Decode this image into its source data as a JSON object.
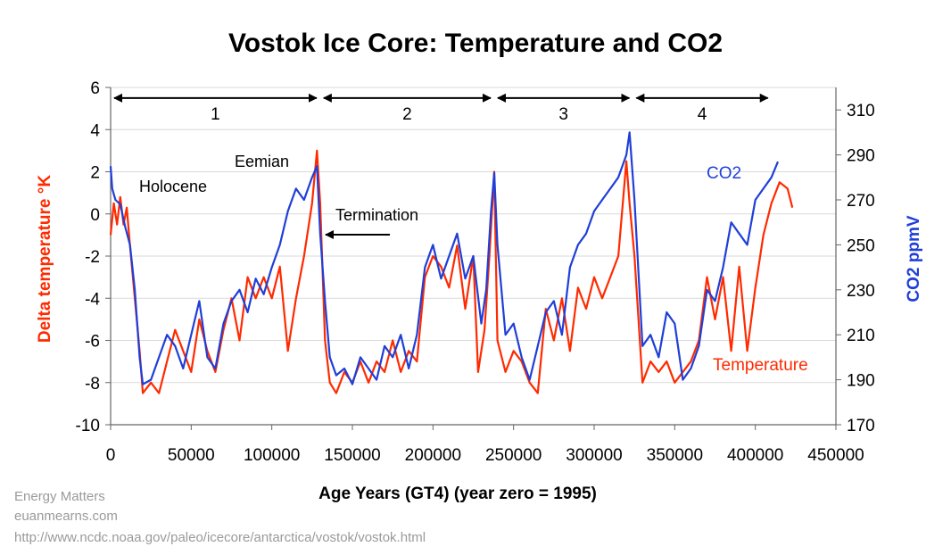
{
  "chart_data": {
    "type": "line",
    "title": "Vostok Ice Core: Temperature and CO2",
    "xlabel": "Age Years (GT4) (year zero = 1995)",
    "ylabel_left": "Delta temperature °K",
    "ylabel_right": "CO2 ppmV",
    "xlim": [
      0,
      450000
    ],
    "ylim_left": [
      -10,
      6
    ],
    "ylim_right": [
      170,
      320
    ],
    "x_ticks": [
      "0",
      "50000",
      "100000",
      "150000",
      "200000",
      "250000",
      "300000",
      "350000",
      "400000",
      "450000"
    ],
    "y_left_ticks": [
      "6",
      "4",
      "2",
      "0",
      "-2",
      "-4",
      "-6",
      "-8",
      "-10"
    ],
    "y_right_ticks": [
      "310",
      "290",
      "270",
      "250",
      "230",
      "210",
      "190",
      "170"
    ],
    "grid": "horizontal",
    "colors": {
      "temperature": "#ff2a00",
      "co2": "#1f3fd8",
      "axis": "#666666",
      "grid": "#d9d9d9",
      "arrow": "#000000"
    },
    "series": [
      {
        "name": "Temperature",
        "axis": "left",
        "x": [
          0,
          2000,
          4000,
          6000,
          8000,
          10000,
          12000,
          15000,
          18000,
          20000,
          25000,
          30000,
          35000,
          40000,
          45000,
          50000,
          55000,
          60000,
          65000,
          70000,
          75000,
          80000,
          85000,
          90000,
          95000,
          100000,
          105000,
          110000,
          115000,
          120000,
          125000,
          128000,
          130000,
          133000,
          136000,
          140000,
          145000,
          150000,
          155000,
          160000,
          165000,
          170000,
          175000,
          180000,
          185000,
          190000,
          195000,
          200000,
          205000,
          210000,
          215000,
          220000,
          225000,
          228000,
          232000,
          235000,
          238000,
          240000,
          245000,
          250000,
          255000,
          260000,
          265000,
          270000,
          275000,
          280000,
          285000,
          290000,
          295000,
          300000,
          305000,
          310000,
          315000,
          320000,
          322000,
          325000,
          330000,
          335000,
          340000,
          345000,
          350000,
          355000,
          360000,
          365000,
          370000,
          375000,
          380000,
          385000,
          390000,
          395000,
          400000,
          405000,
          410000,
          415000,
          420000,
          423000
        ],
        "y": [
          -1.0,
          0.5,
          -0.5,
          0.8,
          -0.5,
          0.3,
          -1.5,
          -4.0,
          -6.5,
          -8.5,
          -8.0,
          -8.5,
          -7.0,
          -5.5,
          -6.5,
          -7.5,
          -5.0,
          -6.5,
          -7.5,
          -5.5,
          -4.0,
          -6.0,
          -3.0,
          -4.0,
          -3.0,
          -4.0,
          -2.5,
          -6.5,
          -4.0,
          -2.0,
          0.5,
          3.0,
          0.5,
          -6.0,
          -8.0,
          -8.5,
          -7.5,
          -8.0,
          -7.0,
          -8.0,
          -7.0,
          -7.5,
          -6.0,
          -7.5,
          -6.5,
          -7.0,
          -3.0,
          -2.0,
          -2.5,
          -3.5,
          -1.5,
          -4.5,
          -2.0,
          -7.5,
          -5.5,
          -2.0,
          2.0,
          -6.0,
          -7.5,
          -6.5,
          -7.0,
          -8.0,
          -8.5,
          -4.5,
          -6.0,
          -4.0,
          -6.5,
          -3.5,
          -4.5,
          -3.0,
          -4.0,
          -3.0,
          -2.0,
          2.5,
          0.5,
          -2.0,
          -8.0,
          -7.0,
          -7.5,
          -7.0,
          -8.0,
          -7.5,
          -7.0,
          -6.0,
          -3.0,
          -5.0,
          -3.0,
          -6.5,
          -2.5,
          -6.5,
          -3.5,
          -1.0,
          0.5,
          1.5,
          1.2,
          0.3
        ]
      },
      {
        "name": "CO2",
        "axis": "right",
        "x": [
          0,
          1000,
          3000,
          6000,
          9000,
          12000,
          15000,
          18000,
          20000,
          25000,
          30000,
          35000,
          40000,
          45000,
          50000,
          55000,
          60000,
          65000,
          70000,
          75000,
          80000,
          85000,
          90000,
          95000,
          100000,
          105000,
          110000,
          115000,
          120000,
          125000,
          128000,
          130000,
          133000,
          136000,
          140000,
          145000,
          150000,
          155000,
          160000,
          165000,
          170000,
          175000,
          180000,
          185000,
          190000,
          195000,
          200000,
          205000,
          210000,
          215000,
          220000,
          225000,
          230000,
          233000,
          236000,
          238000,
          240000,
          245000,
          250000,
          255000,
          260000,
          265000,
          270000,
          275000,
          280000,
          285000,
          290000,
          295000,
          300000,
          305000,
          310000,
          315000,
          320000,
          322000,
          325000,
          330000,
          335000,
          340000,
          345000,
          350000,
          355000,
          360000,
          365000,
          370000,
          375000,
          380000,
          385000,
          390000,
          395000,
          400000,
          405000,
          410000,
          414000
        ],
        "y": [
          285,
          275,
          270,
          268,
          258,
          250,
          230,
          200,
          188,
          190,
          200,
          210,
          205,
          195,
          210,
          225,
          200,
          195,
          215,
          225,
          230,
          220,
          235,
          228,
          240,
          250,
          265,
          275,
          270,
          280,
          285,
          255,
          225,
          200,
          192,
          195,
          188,
          200,
          195,
          190,
          205,
          200,
          210,
          195,
          210,
          240,
          250,
          235,
          245,
          255,
          235,
          245,
          215,
          230,
          265,
          282,
          250,
          210,
          215,
          200,
          190,
          205,
          220,
          225,
          210,
          240,
          250,
          255,
          265,
          270,
          275,
          280,
          290,
          300,
          270,
          205,
          210,
          200,
          220,
          215,
          190,
          195,
          205,
          230,
          225,
          240,
          260,
          255,
          250,
          270,
          275,
          280,
          287
        ]
      }
    ],
    "stage_labels": [
      "1",
      "2",
      "3",
      "4"
    ],
    "annotations": {
      "holocene": "Holocene",
      "eemian": "Eemian",
      "termination": "Termination",
      "co2_label": "CO2",
      "temperature_label": "Temperature"
    }
  },
  "credits": {
    "line1": "Energy Matters",
    "line2": "euanmearns.com",
    "line3": "http://www.ncdc.noaa.gov/paleo/icecore/antarctica/vostok/vostok.html"
  }
}
